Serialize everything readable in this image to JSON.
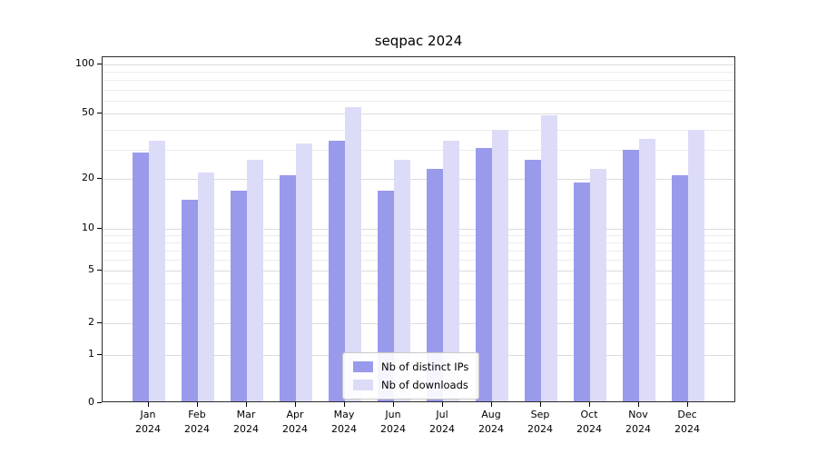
{
  "title": "seqpac 2024",
  "chart_data": {
    "type": "bar",
    "title": "seqpac 2024",
    "yscale": "symlog",
    "y_ticks": [
      0,
      1,
      2,
      5,
      10,
      20,
      50,
      100
    ],
    "y_minor_gridlines": [
      3,
      4,
      6,
      7,
      8,
      9,
      30,
      40,
      60,
      70,
      80,
      90
    ],
    "ylim": [
      0,
      100
    ],
    "grid": true,
    "categories": [
      "Jan",
      "Feb",
      "Mar",
      "Apr",
      "May",
      "Jun",
      "Jul",
      "Aug",
      "Sep",
      "Oct",
      "Nov",
      "Dec"
    ],
    "year": "2024",
    "series": [
      {
        "name": "Nb of distinct IPs",
        "color": "#9a9aec",
        "values": [
          29,
          15,
          17,
          21,
          34,
          17,
          23,
          31,
          26,
          19,
          30,
          21
        ]
      },
      {
        "name": "Nb of downloads",
        "color": "#dcdcf8",
        "values": [
          34,
          22,
          26,
          33,
          55,
          26,
          34,
          40,
          49,
          23,
          35,
          40
        ]
      }
    ],
    "legend_position": "lower center"
  }
}
